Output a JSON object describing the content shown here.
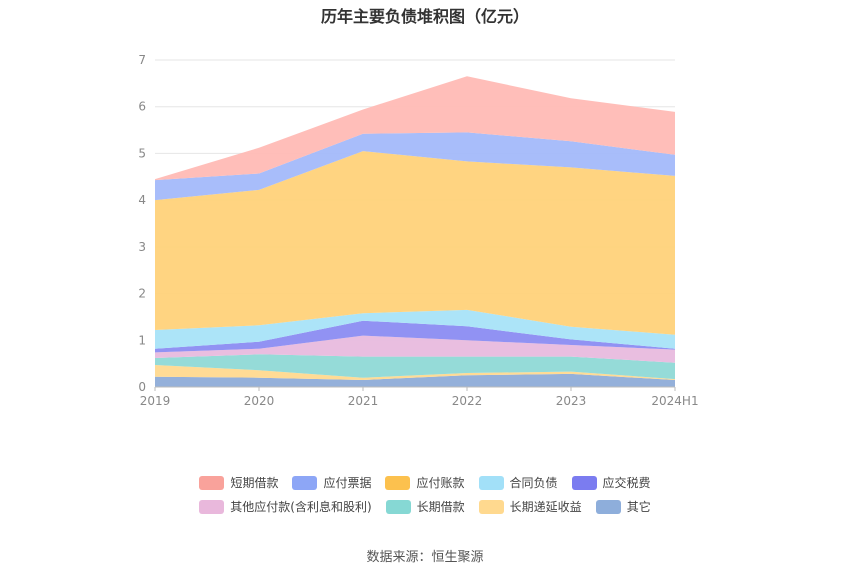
{
  "chart_data": {
    "type": "area",
    "stacked": true,
    "title": "历年主要负债堆积图（亿元）",
    "categories": [
      "2019",
      "2020",
      "2021",
      "2022",
      "2023",
      "2024H1"
    ],
    "ylim": [
      0,
      7
    ],
    "yticks": [
      0,
      1,
      2,
      3,
      4,
      5,
      6,
      7
    ],
    "grid": true,
    "legend_position": "bottom",
    "series": [
      {
        "name": "其它",
        "color": "#8eacd8",
        "values": [
          0.22,
          0.2,
          0.15,
          0.25,
          0.28,
          0.15
        ]
      },
      {
        "name": "长期递延收益",
        "color": "#ffd98f",
        "values": [
          0.25,
          0.16,
          0.05,
          0.05,
          0.05,
          0.02
        ]
      },
      {
        "name": "长期借款",
        "color": "#8fd9d6",
        "values": [
          0.15,
          0.34,
          0.45,
          0.35,
          0.32,
          0.35
        ]
      },
      {
        "name": "其他应付款(含利息和股利)",
        "color": "#e8bade",
        "values": [
          0.12,
          0.12,
          0.45,
          0.35,
          0.25,
          0.28
        ]
      },
      {
        "name": "应交税费",
        "color": "#8b8cf2",
        "values": [
          0.08,
          0.15,
          0.32,
          0.3,
          0.12,
          0.02
        ]
      },
      {
        "name": "合同负债",
        "color": "#a8e3f8",
        "values": [
          0.4,
          0.35,
          0.16,
          0.35,
          0.27,
          0.3
        ]
      },
      {
        "name": "应付账款",
        "color": "#ffd27a",
        "values": [
          2.78,
          2.9,
          3.47,
          3.18,
          3.41,
          3.4
        ]
      },
      {
        "name": "应付票据",
        "color": "#a3b9fa",
        "values": [
          0.43,
          0.35,
          0.37,
          0.62,
          0.56,
          0.45
        ]
      },
      {
        "name": "短期借款",
        "color": "#ffbab5",
        "values": [
          0.02,
          0.55,
          0.52,
          1.2,
          0.92,
          0.92
        ]
      }
    ]
  },
  "legend": {
    "row1": [
      {
        "name": "短期借款",
        "color": "#f9a29b"
      },
      {
        "name": "应付票据",
        "color": "#8da6f6"
      },
      {
        "name": "应付账款",
        "color": "#fcc14e"
      },
      {
        "name": "合同负债",
        "color": "#a2e0f8"
      },
      {
        "name": "应交税费",
        "color": "#7b7cf0"
      }
    ],
    "row2": [
      {
        "name": "其他应付款(含利息和股利)",
        "color": "#e9b8dc"
      },
      {
        "name": "长期借款",
        "color": "#86d8d4"
      },
      {
        "name": "长期递延收益",
        "color": "#ffd98f"
      },
      {
        "name": "其它",
        "color": "#8eaedb"
      }
    ]
  },
  "source": "数据来源：恒生聚源"
}
